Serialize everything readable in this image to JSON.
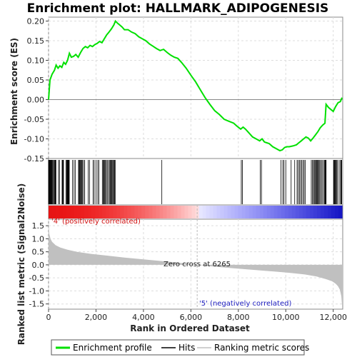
{
  "chart_data": {
    "type": "line",
    "title": "Enrichment plot: HALLMARK_ADIPOGENESIS",
    "xlabel": "Rank in Ordered Dataset",
    "ylabel_top": "Enrichment score (ES)",
    "ylabel_bottom": "Ranked list metric (Signal2Noise)",
    "x_range": [
      0,
      12400
    ],
    "x_ticks": [
      0,
      2000,
      4000,
      6000,
      8000,
      10000,
      12000
    ],
    "x_tick_labels": [
      "0",
      "2,000",
      "4,000",
      "6,000",
      "8,000",
      "10,000",
      "12,000"
    ],
    "es_ylim": [
      -0.15,
      0.21
    ],
    "es_ticks": [
      -0.15,
      -0.1,
      -0.05,
      0.0,
      0.05,
      0.1,
      0.15,
      0.2
    ],
    "es_tick_labels": [
      "-0.15",
      "-0.10",
      "-0.05",
      "0.00",
      "0.05",
      "0.10",
      "0.15",
      "0.20"
    ],
    "metric_ylim": [
      -1.7,
      1.75
    ],
    "metric_ticks": [
      -1.5,
      -1.0,
      -0.5,
      0.0,
      0.5,
      1.0,
      1.5
    ],
    "metric_tick_labels": [
      "-1.5",
      "-1.0",
      "-0.5",
      "0.0",
      "0.5",
      "1.0",
      "1.5"
    ],
    "grid": true,
    "zero_cross": 6265,
    "annotations": {
      "positive": "'4' (positively correlated)",
      "negative": "'5' (negatively correlated)",
      "zero_cross": "Zero cross at 6265"
    },
    "legend": {
      "placement": "bottom",
      "entries": [
        "Enrichment profile",
        "Hits",
        "Ranking metric scores"
      ]
    },
    "series": [
      {
        "name": "Enrichment profile",
        "color": "#00e000",
        "x": [
          0,
          60,
          150,
          250,
          320,
          400,
          480,
          560,
          640,
          720,
          800,
          880,
          960,
          1050,
          1150,
          1250,
          1350,
          1450,
          1550,
          1650,
          1750,
          1850,
          1950,
          2050,
          2150,
          2250,
          2350,
          2450,
          2550,
          2650,
          2750,
          2820,
          2900,
          3000,
          3100,
          3200,
          3350,
          3500,
          3650,
          3800,
          3950,
          4100,
          4250,
          4400,
          4550,
          4700,
          4850,
          5000,
          5150,
          5300,
          5450,
          5600,
          5800,
          6000,
          6200,
          6400,
          6600,
          6800,
          7000,
          7200,
          7400,
          7600,
          7800,
          7950,
          8100,
          8200,
          8300,
          8450,
          8600,
          8750,
          8900,
          9000,
          9100,
          9200,
          9300,
          9450,
          9600,
          9750,
          9850,
          9950,
          10050,
          10150,
          10300,
          10450,
          10550,
          10650,
          10750,
          10850,
          10950,
          11050,
          11150,
          11250,
          11350,
          11450,
          11550,
          11650,
          11700,
          11800,
          11900,
          12000,
          12100,
          12200,
          12300,
          12370
        ],
        "y": [
          0.0,
          0.05,
          0.065,
          0.075,
          0.088,
          0.08,
          0.086,
          0.082,
          0.095,
          0.09,
          0.1,
          0.118,
          0.108,
          0.11,
          0.115,
          0.108,
          0.12,
          0.13,
          0.135,
          0.132,
          0.138,
          0.135,
          0.14,
          0.143,
          0.148,
          0.145,
          0.155,
          0.165,
          0.172,
          0.18,
          0.19,
          0.2,
          0.195,
          0.19,
          0.185,
          0.178,
          0.178,
          0.172,
          0.168,
          0.16,
          0.155,
          0.15,
          0.142,
          0.136,
          0.13,
          0.125,
          0.128,
          0.12,
          0.113,
          0.108,
          0.105,
          0.095,
          0.08,
          0.062,
          0.045,
          0.025,
          0.005,
          -0.012,
          -0.028,
          -0.038,
          -0.05,
          -0.055,
          -0.06,
          -0.068,
          -0.075,
          -0.07,
          -0.075,
          -0.085,
          -0.095,
          -0.1,
          -0.105,
          -0.1,
          -0.108,
          -0.11,
          -0.112,
          -0.12,
          -0.125,
          -0.13,
          -0.128,
          -0.122,
          -0.12,
          -0.12,
          -0.118,
          -0.115,
          -0.11,
          -0.105,
          -0.1,
          -0.095,
          -0.098,
          -0.105,
          -0.098,
          -0.09,
          -0.082,
          -0.072,
          -0.065,
          -0.06,
          -0.012,
          -0.02,
          -0.025,
          -0.03,
          -0.018,
          -0.008,
          -0.005,
          0.005
        ]
      },
      {
        "name": "Ranking metric scores",
        "color": "#c0c0c0",
        "x": [
          0,
          30,
          80,
          150,
          300,
          500,
          800,
          1200,
          1800,
          2500,
          3200,
          4000,
          4800,
          5500,
          6265,
          7000,
          7800,
          8600,
          9400,
          10200,
          10800,
          11300,
          11700,
          11950,
          12100,
          12200,
          12280,
          12340,
          12370
        ],
        "y": [
          1.6,
          1.2,
          1.0,
          0.88,
          0.75,
          0.66,
          0.58,
          0.5,
          0.42,
          0.35,
          0.28,
          0.21,
          0.14,
          0.08,
          0.0,
          -0.07,
          -0.13,
          -0.19,
          -0.25,
          -0.31,
          -0.37,
          -0.45,
          -0.55,
          -0.63,
          -0.72,
          -0.82,
          -0.95,
          -1.2,
          -1.55
        ]
      }
    ]
  }
}
